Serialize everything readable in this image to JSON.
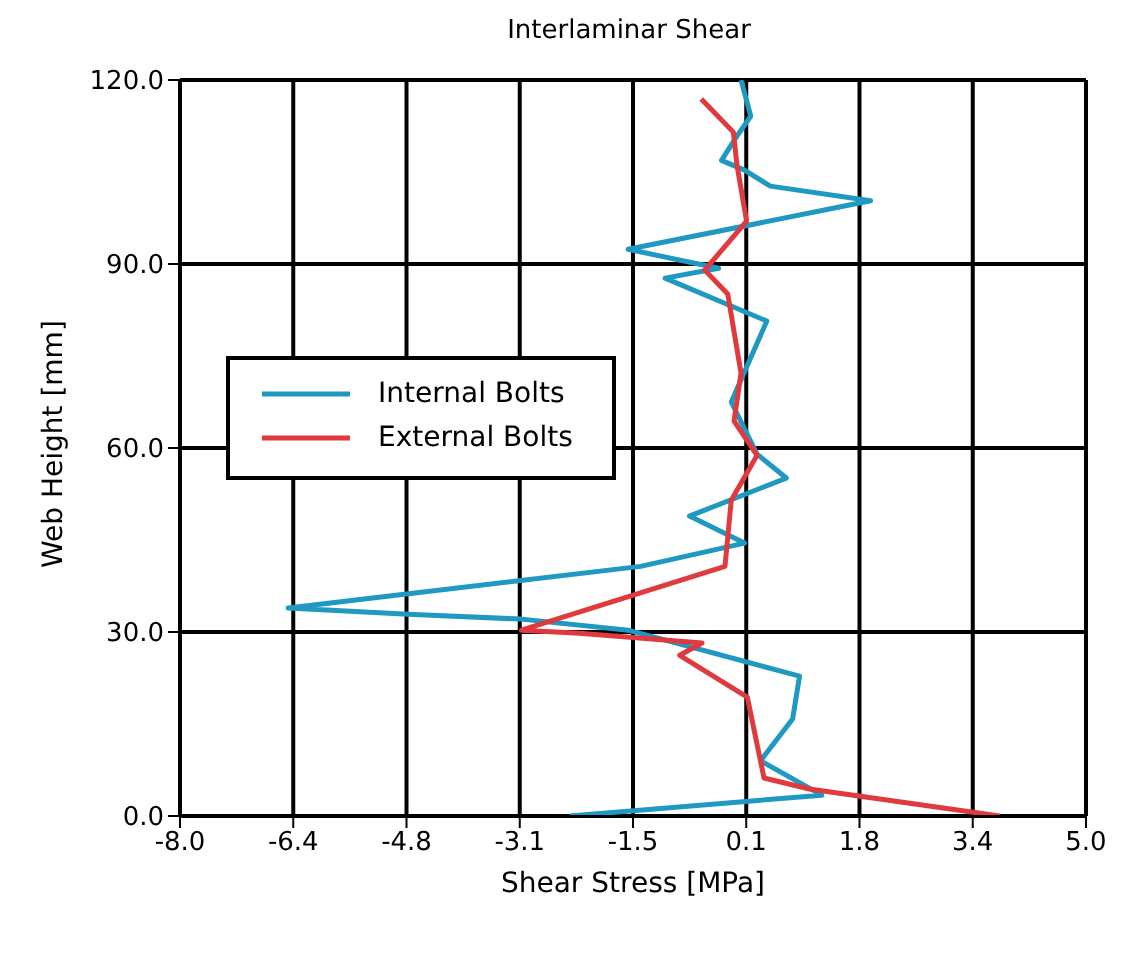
{
  "chart_data": {
    "type": "line",
    "title": "Interlaminar Shear",
    "xlabel": "Shear Stress [MPa]",
    "ylabel": "Web Height [mm]",
    "series": [
      {
        "name": "Internal Bolts",
        "color": "#1f98c2",
        "x": [
          -2.41,
          1.21,
          0.33,
          0.79,
          0.89,
          -1.57,
          -3.1,
          -4.73,
          -6.45,
          -1.39,
          0.1,
          -0.69,
          0.7,
          0.28,
          -0.09,
          0.42,
          -1.04,
          -0.27,
          -1.57,
          1.91,
          0.47,
          0.1,
          -0.23,
          0.0,
          0.19,
          0.05
        ],
        "values": [
          0,
          3.4,
          9.0,
          15.8,
          22.8,
          30.3,
          32.1,
          32.9,
          33.9,
          40.7,
          44.5,
          48.9,
          55.1,
          59.0,
          67.5,
          80.7,
          87.7,
          89.3,
          92.4,
          100.3,
          102.7,
          105.3,
          106.9,
          111,
          114.1,
          120
        ]
      },
      {
        "name": "External Bolts",
        "color": "#e0393e",
        "x": [
          3.76,
          1.03,
          0.38,
          0.14,
          -0.83,
          -0.51,
          -2.27,
          -3.1,
          -0.18,
          -0.09,
          0.28,
          -0.05,
          0.05,
          -0.14,
          -0.47,
          0.13,
          -0.01,
          -0.06,
          -0.52
        ],
        "values": [
          0,
          4.4,
          6.2,
          19.4,
          26.2,
          28.2,
          29.8,
          30.3,
          40.7,
          51.5,
          58.8,
          64.4,
          72.2,
          85.1,
          89.0,
          97,
          106.3,
          111.5,
          116.9
        ]
      }
    ],
    "xlim": [
      -8,
      5
    ],
    "xticks": [
      {
        "value": -8,
        "label": "-8.0"
      },
      {
        "value": -6.375,
        "label": "-6.4"
      },
      {
        "value": -4.75,
        "label": "-4.8"
      },
      {
        "value": -3.125,
        "label": "-3.1"
      },
      {
        "value": -1.5,
        "label": "-1.5"
      },
      {
        "value": 0.125,
        "label": "0.1"
      },
      {
        "value": 1.75,
        "label": "1.8"
      },
      {
        "value": 3.375,
        "label": "3.4"
      },
      {
        "value": 5,
        "label": "5.0"
      }
    ],
    "ylim": [
      0,
      120
    ],
    "yticks": [
      {
        "value": 0,
        "label": "0.0"
      },
      {
        "value": 30,
        "label": "30.0"
      },
      {
        "value": 60,
        "label": "60.0"
      },
      {
        "value": 90,
        "label": "90.0"
      },
      {
        "value": 120,
        "label": "120.0"
      }
    ],
    "grid": true,
    "legend": "top left",
    "marker": "none",
    "line_style": "solid"
  }
}
